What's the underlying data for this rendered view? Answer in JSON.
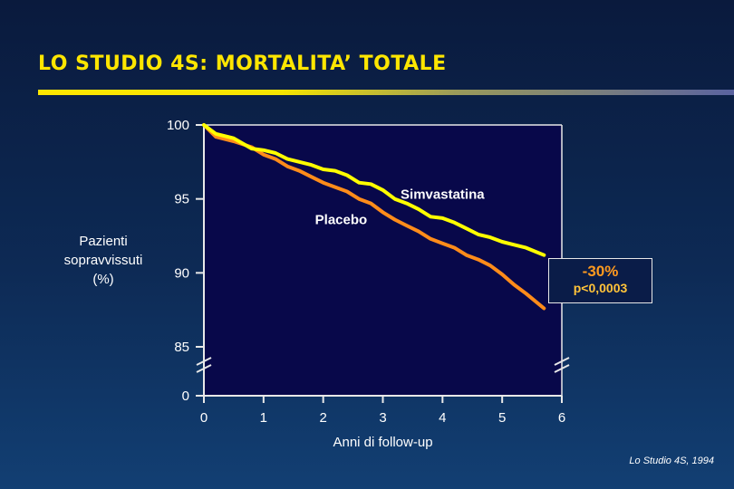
{
  "slide": {
    "title": "LO STUDIO 4S: MORTALITA’ TOTALE",
    "citation": "Lo Studio 4S, 1994",
    "colors": {
      "title": "#ffe600",
      "background": "#0d2a55",
      "plot_bg": "#08084a"
    }
  },
  "annotation": {
    "reduction": "-30%",
    "pvalue": "p<0,0003"
  },
  "chart_data": {
    "type": "line",
    "title": "",
    "xlabel": "Anni di follow-up",
    "ylabel": "Pazienti sopravvissuti (%)",
    "xlim": [
      0,
      6
    ],
    "ylim": [
      85,
      100
    ],
    "y_axis_break": true,
    "y_break_label": "0",
    "x_ticks": [
      0,
      1,
      2,
      3,
      4,
      5,
      6
    ],
    "y_ticks": [
      85,
      90,
      95,
      100
    ],
    "grid": false,
    "series": [
      {
        "name": "Simvastatina",
        "color": "#ffff00",
        "x": [
          0,
          0.2,
          0.5,
          0.8,
          1.0,
          1.2,
          1.4,
          1.6,
          1.8,
          2.0,
          2.2,
          2.4,
          2.6,
          2.8,
          3.0,
          3.2,
          3.4,
          3.6,
          3.8,
          4.0,
          4.2,
          4.4,
          4.6,
          4.8,
          5.0,
          5.2,
          5.4,
          5.7
        ],
        "y": [
          100,
          99.4,
          99.1,
          98.4,
          98.3,
          98.1,
          97.7,
          97.5,
          97.3,
          97.0,
          96.9,
          96.6,
          96.1,
          96.0,
          95.6,
          95.0,
          94.7,
          94.3,
          93.8,
          93.7,
          93.4,
          93.0,
          92.6,
          92.4,
          92.1,
          91.9,
          91.7,
          91.2
        ]
      },
      {
        "name": "Placebo",
        "color": "#ff8c1a",
        "x": [
          0,
          0.2,
          0.5,
          0.8,
          1.0,
          1.2,
          1.4,
          1.6,
          1.8,
          2.0,
          2.2,
          2.4,
          2.6,
          2.8,
          3.0,
          3.2,
          3.4,
          3.6,
          3.8,
          4.0,
          4.2,
          4.4,
          4.6,
          4.8,
          5.0,
          5.2,
          5.4,
          5.7
        ],
        "y": [
          100,
          99.2,
          98.9,
          98.5,
          98.0,
          97.7,
          97.2,
          96.9,
          96.5,
          96.1,
          95.8,
          95.5,
          95.0,
          94.7,
          94.1,
          93.6,
          93.2,
          92.8,
          92.3,
          92.0,
          91.7,
          91.2,
          90.9,
          90.5,
          89.9,
          89.2,
          88.6,
          87.6
        ]
      }
    ],
    "series_labels": [
      {
        "series": "Simvastatina",
        "text": "Simvastatina",
        "x": 4.0,
        "y": 95.0
      },
      {
        "series": "Placebo",
        "text": "Placebo",
        "x": 2.3,
        "y": 93.3
      }
    ]
  }
}
